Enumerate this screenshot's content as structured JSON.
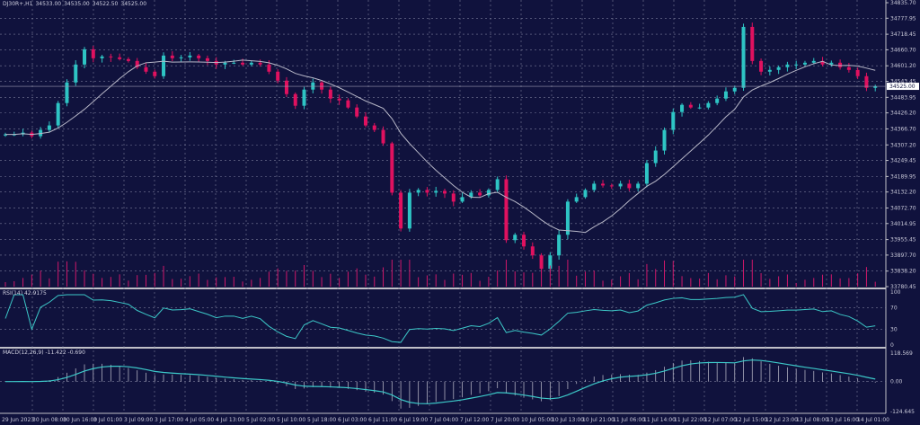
{
  "header": {
    "symbol": "DJ30R+,H1",
    "open": "34533.00",
    "high": "34535.00",
    "low": "34522.50",
    "close": "34525.00"
  },
  "colors": {
    "background": "#10123d",
    "bull": "#2ec4c4",
    "bear": "#e0115f",
    "grid": "#7a7c9a",
    "ma": "#b8b8c8",
    "indicator": "#3cc8c8",
    "volume": "#d0186a"
  },
  "rsi": {
    "label": "RSI(14) 42.9175",
    "ticks": [
      "100",
      "70",
      "30",
      "0"
    ]
  },
  "macd": {
    "label": "MACD(12,26,9) -11.422 -0.690",
    "ticks": [
      "118.569",
      "0.00",
      "-124.645"
    ]
  },
  "chart_data": {
    "type": "candlestick",
    "price_ticks": [
      "34835.70",
      "34777.95",
      "34718.45",
      "34660.70",
      "34601.20",
      "34543.45",
      "34483.95",
      "34426.20",
      "34366.70",
      "34307.20",
      "34249.45",
      "34189.95",
      "34132.20",
      "34072.70",
      "34014.95",
      "33955.45",
      "33897.70",
      "33838.20",
      "33780.45"
    ],
    "current_price": "34525.00",
    "ylim": [
      33780.45,
      34835.7
    ],
    "time_labels": [
      "29 Jun 2023",
      "30 Jun 08:00",
      "30 Jun 16:00",
      "3 Jul 01:00",
      "3 Jul 09:00",
      "3 Jul 17:00",
      "4 Jul 05:00",
      "4 Jul 13:00",
      "5 Jul 02:00",
      "5 Jul 10:00",
      "5 Jul 18:00",
      "6 Jul 03:00",
      "6 Jul 11:00",
      "6 Jul 19:00",
      "7 Jul 04:00",
      "7 Jul 12:00",
      "7 Jul 20:00",
      "10 Jul 05:00",
      "10 Jul 13:00",
      "10 Jul 21:00",
      "11 Jul 06:00",
      "11 Jul 14:00",
      "11 Jul 22:00",
      "12 Jul 07:00",
      "12 Jul 15:00",
      "12 Jul 23:00",
      "13 Jul 08:00",
      "13 Jul 16:00",
      "14 Jul 01:00"
    ],
    "closes": [
      34346.2,
      34346.2,
      34352.8,
      34339.5,
      34362.8,
      34379.5,
      34462.7,
      34539.3,
      34605.9,
      34662.5,
      34629.2,
      34635.9,
      34632.6,
      34625.9,
      34619.2,
      34595.9,
      34579.3,
      34562.6,
      34639.2,
      34629.2,
      34632.6,
      34639.2,
      34629.2,
      34619.2,
      34605.9,
      34612.6,
      34612.6,
      34605.9,
      34612.6,
      34605.9,
      34579.3,
      34546.0,
      34496.0,
      34452.7,
      34512.7,
      34539.3,
      34512.7,
      34479.4,
      34472.7,
      34446.1,
      34412.8,
      34379.5,
      34362.8,
      34312.9,
      34129.7,
      33996.5,
      34129.7,
      34139.7,
      34129.7,
      34136.4,
      34126.4,
      34096.4,
      34113.1,
      34129.7,
      34119.7,
      34139.7,
      34179.7,
      33953.2,
      33973.2,
      33929.9,
      33896.6,
      33846.7,
      33896.6,
      33973.2,
      34096.4,
      34113.1,
      34139.7,
      34163.0,
      34156.4,
      34153.0,
      34163.0,
      34146.4,
      34163.0,
      34239.6,
      34286.2,
      34362.8,
      34429.4,
      34456.1,
      34446.1,
      34446.1,
      34462.7,
      34479.4,
      34506.0,
      34519.3,
      34745.8,
      34619.2,
      34579.3,
      34585.9,
      34595.9,
      34605.9,
      34605.9,
      34612.6,
      34619.2,
      34605.9,
      34612.6,
      34595.9,
      34585.9,
      34562.6,
      34519.3,
      34525.0
    ]
  }
}
